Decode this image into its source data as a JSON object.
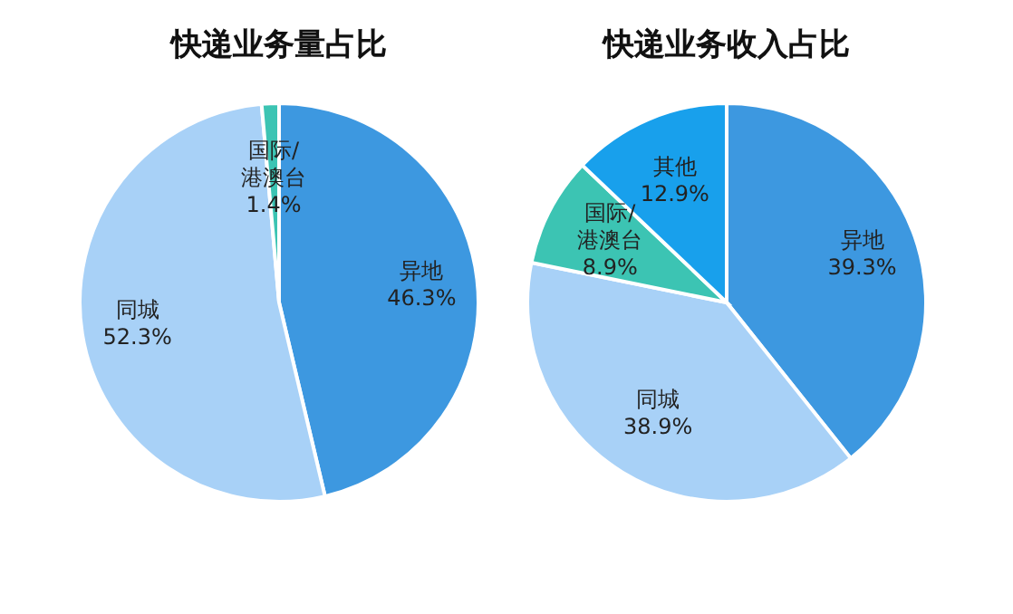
{
  "chart_data": [
    {
      "type": "pie",
      "title": "快递业务量占比",
      "categories": [
        "异地",
        "同城",
        "国际/\n港澳台"
      ],
      "values": [
        46.3,
        52.3,
        1.4
      ],
      "value_labels": [
        "46.3%",
        "52.3%",
        "1.4%"
      ],
      "colors": [
        "#3d98e0",
        "#a8d1f7",
        "#3cc4b3"
      ]
    },
    {
      "type": "pie",
      "title": "快递业务收入占比",
      "categories": [
        "异地",
        "同城",
        "国际/\n港澳台",
        "其他"
      ],
      "values": [
        39.3,
        38.9,
        8.9,
        12.9
      ],
      "value_labels": [
        "39.3%",
        "38.9%",
        "8.9%",
        "12.9%"
      ],
      "colors": [
        "#3d98e0",
        "#a8d1f7",
        "#3cc4b3",
        "#18a0ec"
      ]
    }
  ]
}
